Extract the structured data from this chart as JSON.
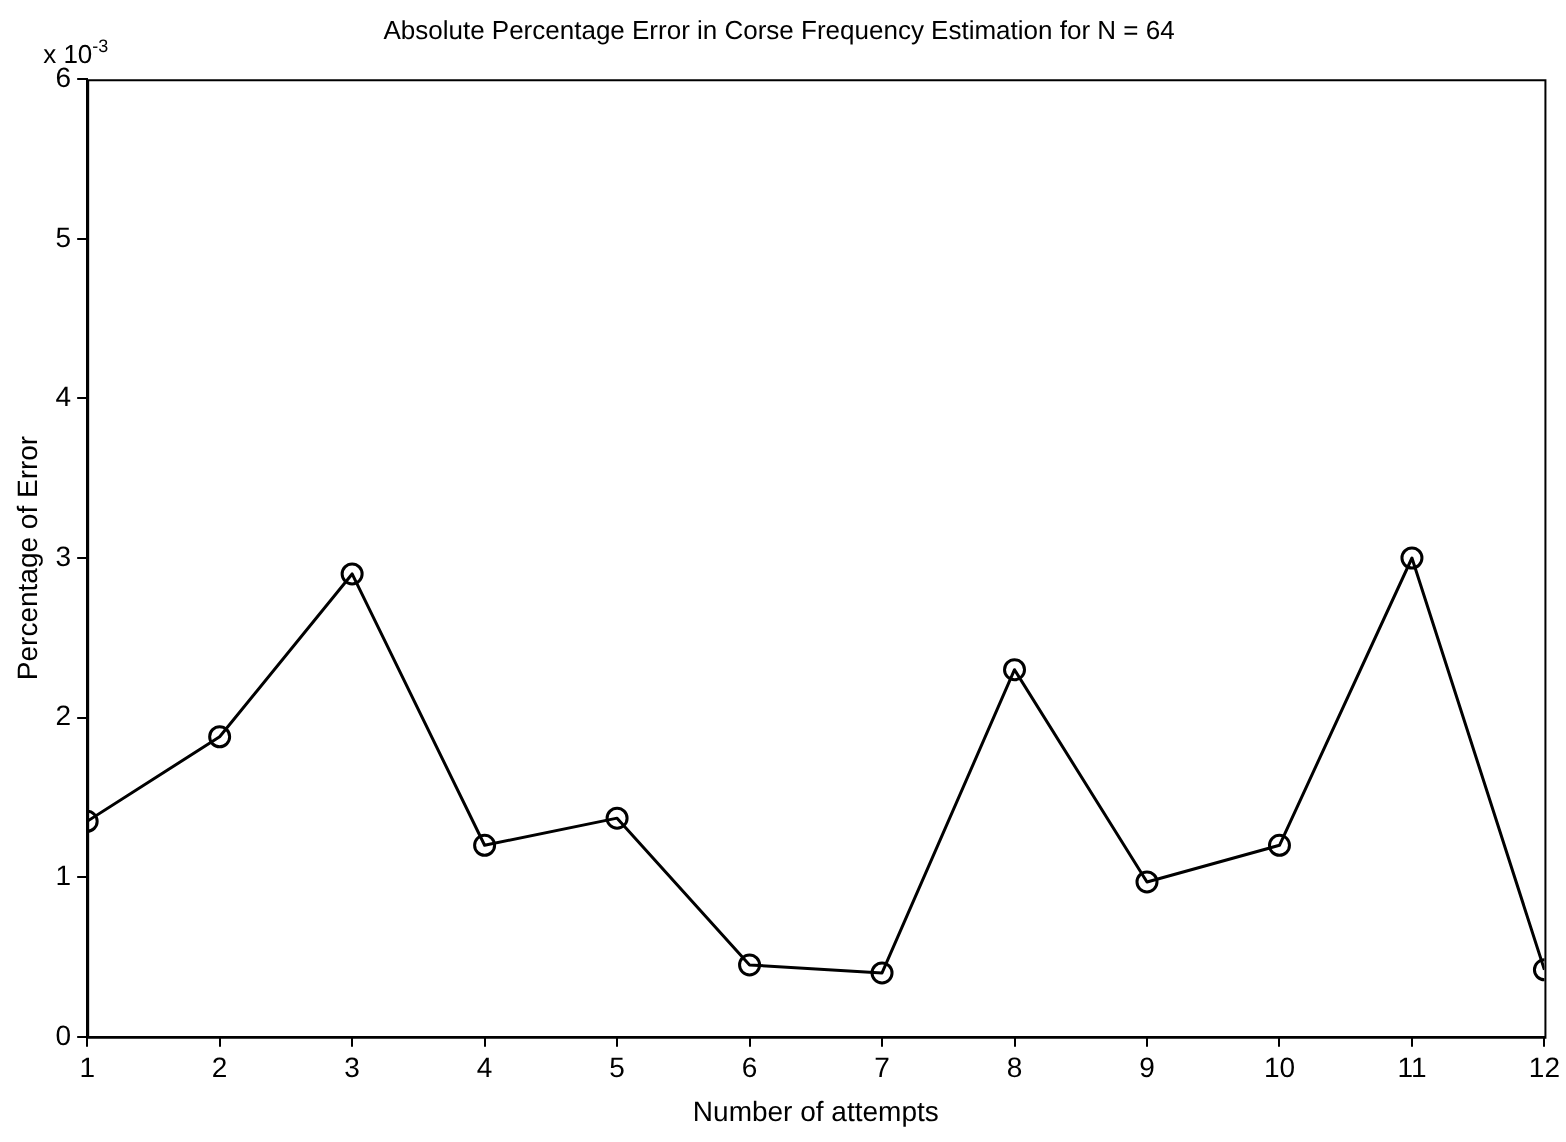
{
  "chart_data": {
    "type": "line",
    "title": "Absolute Percentage Error in Corse Frequency Estimation for N = 64",
    "xlabel": "Number of attempts",
    "ylabel": "Percentage of Error",
    "annotations": [
      "x 10$^{-3}$"
    ],
    "x": [
      1,
      2,
      3,
      4,
      5,
      6,
      7,
      8,
      9,
      10,
      11,
      12
    ],
    "series": [
      {
        "color": "#000000",
        "values": [
          1.35,
          1.88,
          2.9,
          1.2,
          1.37,
          0.45,
          0.4,
          2.3,
          0.97,
          1.2,
          3.0,
          0.42
        ]
      }
    ],
    "xlim": [
      1,
      12
    ],
    "xticks": [
      1,
      2,
      3,
      4,
      5,
      6,
      7,
      8,
      9,
      10,
      11,
      12
    ],
    "ylim": [
      0,
      6
    ],
    "yticks": [
      0,
      1,
      2,
      3,
      4,
      5,
      6
    ],
    "grid": false,
    "legend": false,
    "marker": "circle",
    "line_style": "solid"
  }
}
